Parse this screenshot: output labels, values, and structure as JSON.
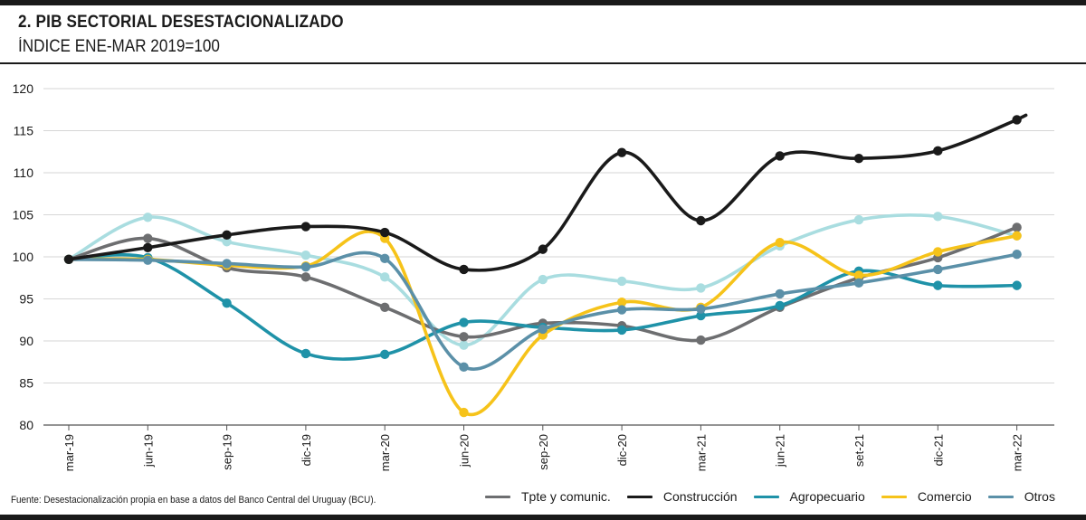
{
  "header": {
    "title": "2. PIB SECTORIAL DESESTACIONALIZADO",
    "subtitle": "ÍNDICE ENE-MAR 2019=100"
  },
  "source": "Fuente: Desestacionalización propia en base a datos del Banco Central del Uruguay (BCU).",
  "chart_data": {
    "type": "line",
    "title": "2. PIB SECTORIAL DESESTACIONALIZADO",
    "subtitle": "ÍNDICE ENE-MAR 2019=100",
    "xlabel": "",
    "ylabel": "",
    "categories": [
      "mar-19",
      "jun-19",
      "sep-19",
      "dic-19",
      "mar-20",
      "jun-20",
      "sep-20",
      "dic-20",
      "mar-21",
      "jun-21",
      "set-21",
      "dic-21",
      "mar-22"
    ],
    "ylim": [
      80,
      120
    ],
    "yticks": [
      80,
      85,
      90,
      95,
      100,
      105,
      110,
      115,
      120
    ],
    "grid": "horizontal",
    "legend_position": "bottom-right",
    "series": [
      {
        "name": "Tpte y comunic.",
        "color": "#6d6e70",
        "values": [
          99.7,
          102.2,
          98.7,
          97.6,
          94.0,
          90.5,
          92.1,
          91.8,
          90.1,
          94.0,
          97.5,
          99.9,
          103.5
        ]
      },
      {
        "name": "Construcción",
        "color": "#1a1a1a",
        "values": [
          99.7,
          101.1,
          102.6,
          103.6,
          102.9,
          98.5,
          100.9,
          112.4,
          104.3,
          112.0,
          111.7,
          112.6,
          116.3
        ]
      },
      {
        "name": "Agropecuario",
        "color": "#1f92a8",
        "values": [
          99.7,
          99.9,
          94.5,
          88.5,
          88.4,
          92.2,
          91.6,
          91.3,
          93.0,
          94.2,
          98.3,
          96.6,
          96.6
        ]
      },
      {
        "name": "Comercio",
        "color": "#f6c31a",
        "values": [
          99.7,
          99.7,
          99.0,
          98.9,
          102.2,
          81.5,
          90.7,
          94.6,
          94.0,
          101.7,
          97.8,
          100.6,
          102.5
        ]
      },
      {
        "name": "Otros",
        "color": "#5b90a8",
        "values": [
          99.7,
          99.6,
          99.2,
          98.8,
          99.8,
          86.9,
          91.4,
          93.7,
          93.8,
          95.6,
          96.9,
          98.5,
          100.3
        ]
      },
      {
        "color": "#a9dde0",
        "values": [
          99.7,
          104.7,
          101.8,
          100.2,
          97.6,
          89.5,
          97.3,
          97.1,
          96.3,
          101.3,
          104.4,
          104.8,
          102.5
        ]
      }
    ]
  }
}
